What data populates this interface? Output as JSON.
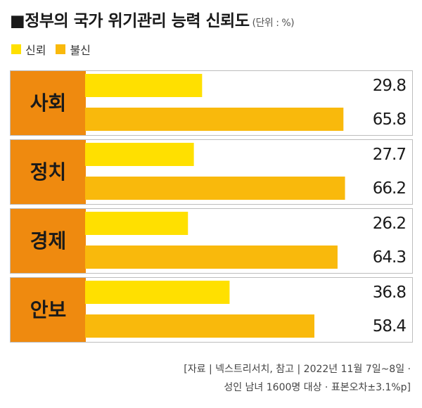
{
  "header": {
    "title": "■정부의 국가 위기관리 능력 신뢰도",
    "unit": "(단위 : %)"
  },
  "legend": [
    {
      "label": "신뢰",
      "color": "#FFE000"
    },
    {
      "label": "불신",
      "color": "#F9B90C"
    }
  ],
  "colors": {
    "category_box": "#EF8A0F",
    "panel_border": "#BDBDBD",
    "trust": "#FFE000",
    "distrust": "#F9B90C"
  },
  "chart_data": {
    "type": "bar",
    "orientation": "horizontal",
    "title": "■정부의 국가 위기관리 능력 신뢰도",
    "unit": "%",
    "categories": [
      "사회",
      "정치",
      "경제",
      "안보"
    ],
    "series": [
      {
        "name": "신뢰",
        "values": [
          29.8,
          27.7,
          26.2,
          36.8
        ]
      },
      {
        "name": "불신",
        "values": [
          65.8,
          66.2,
          64.3,
          58.4
        ]
      }
    ],
    "labels": [
      [
        "29.8",
        "65.8"
      ],
      [
        "27.7",
        "66.2"
      ],
      [
        "26.2",
        "64.3"
      ],
      [
        "36.8",
        "58.4"
      ]
    ],
    "xlim": [
      0,
      67
    ],
    "grid": false,
    "legend_position": "top-left"
  },
  "footer": {
    "source_line1": "[자료 | 넥스트리서치, 참고 | 2022년 11월 7일~8일 ·",
    "source_line2": "성인 남녀 1600명 대상 · 표본오차±3.1%p]"
  }
}
